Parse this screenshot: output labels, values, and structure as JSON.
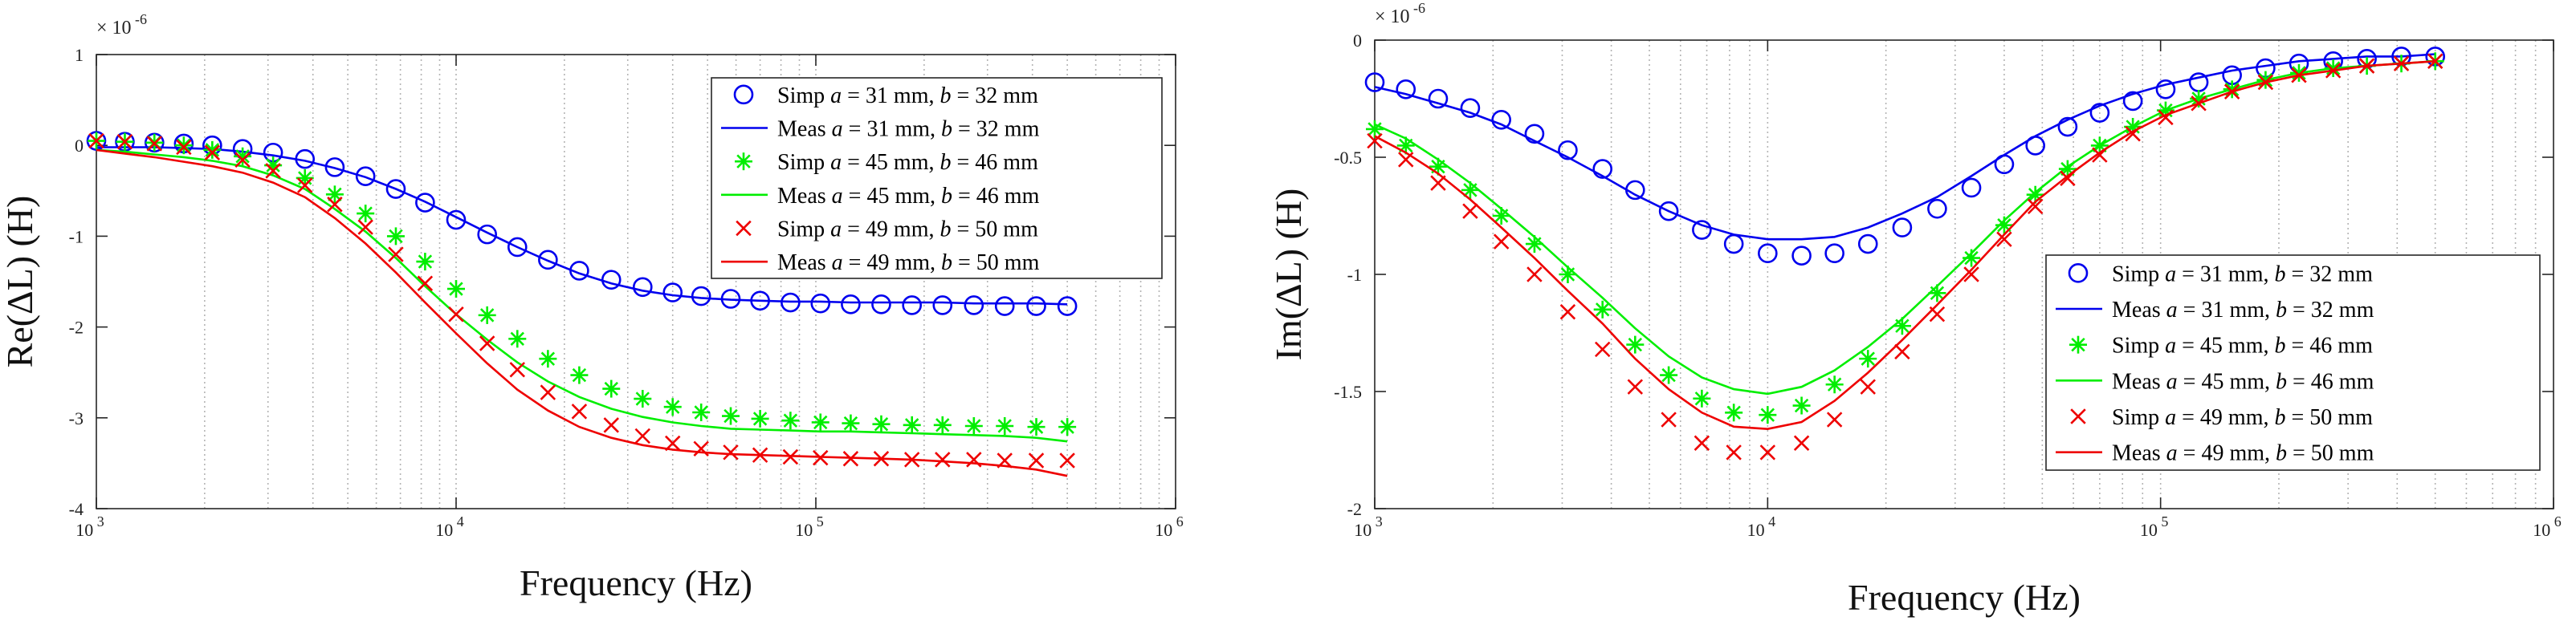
{
  "colors": {
    "blue": "#0000ee",
    "green": "#00ee00",
    "red": "#ee0000",
    "axis": "#262626",
    "grid": "#b4b4b4"
  },
  "chart_data": [
    {
      "type": "line",
      "xscale": "log",
      "xlim": [
        1000,
        1000000
      ],
      "ylim": [
        -4,
        1
      ],
      "yticks": [
        -4,
        -3,
        -2,
        -1,
        0,
        1
      ],
      "xticks": [
        {
          "base": "10",
          "exp": "3"
        },
        {
          "base": "10",
          "exp": "4"
        },
        {
          "base": "10",
          "exp": "5"
        },
        {
          "base": "10",
          "exp": "6"
        }
      ],
      "yscale_label": {
        "base": "× 10",
        "exp": "-6"
      },
      "xlabel": "Frequency (Hz)",
      "ylabel": "Re(ΔL) (H)",
      "legend_position": "top-right",
      "freq": [
        1000,
        1200,
        1450,
        1750,
        2100,
        2550,
        3100,
        3800,
        4600,
        5600,
        6800,
        8200,
        10000,
        12200,
        14800,
        18000,
        22000,
        27000,
        33000,
        40000,
        48000,
        58000,
        70000,
        85000,
        103000,
        125000,
        152000,
        185000,
        225000,
        275000,
        335000,
        410000,
        500000
      ],
      "series": [
        {
          "name": "Simp",
          "a": "31",
          "b": "32",
          "color": "blue",
          "style": "circle",
          "values": [
            0.05,
            0.04,
            0.03,
            0.02,
            0.0,
            -0.04,
            -0.08,
            -0.15,
            -0.24,
            -0.34,
            -0.48,
            -0.63,
            -0.82,
            -0.98,
            -1.12,
            -1.26,
            -1.38,
            -1.48,
            -1.56,
            -1.62,
            -1.66,
            -1.69,
            -1.71,
            -1.73,
            -1.74,
            -1.75,
            -1.75,
            -1.76,
            -1.76,
            -1.76,
            -1.77,
            -1.77,
            -1.77
          ]
        },
        {
          "name": "Meas",
          "a": "31",
          "b": "32",
          "color": "blue",
          "style": "line",
          "values": [
            -0.02,
            -0.02,
            -0.02,
            -0.03,
            -0.04,
            -0.07,
            -0.11,
            -0.17,
            -0.25,
            -0.35,
            -0.48,
            -0.62,
            -0.79,
            -0.96,
            -1.12,
            -1.27,
            -1.41,
            -1.52,
            -1.6,
            -1.65,
            -1.68,
            -1.7,
            -1.71,
            -1.72,
            -1.72,
            -1.73,
            -1.73,
            -1.73,
            -1.73,
            -1.74,
            -1.74,
            -1.74,
            -1.75
          ]
        },
        {
          "name": "Simp",
          "a": "45",
          "b": "46",
          "color": "green",
          "style": "asterisk",
          "values": [
            0.05,
            0.04,
            0.03,
            0.0,
            -0.05,
            -0.12,
            -0.22,
            -0.36,
            -0.54,
            -0.75,
            -1.0,
            -1.28,
            -1.58,
            -1.87,
            -2.13,
            -2.35,
            -2.53,
            -2.68,
            -2.79,
            -2.88,
            -2.94,
            -2.98,
            -3.01,
            -3.03,
            -3.05,
            -3.06,
            -3.07,
            -3.08,
            -3.08,
            -3.09,
            -3.09,
            -3.1,
            -3.1
          ]
        },
        {
          "name": "Meas",
          "a": "45",
          "b": "46",
          "color": "green",
          "style": "line",
          "values": [
            -0.05,
            -0.07,
            -0.1,
            -0.13,
            -0.17,
            -0.23,
            -0.33,
            -0.48,
            -0.7,
            -0.95,
            -1.24,
            -1.55,
            -1.86,
            -2.14,
            -2.39,
            -2.6,
            -2.77,
            -2.9,
            -2.99,
            -3.05,
            -3.09,
            -3.12,
            -3.13,
            -3.14,
            -3.15,
            -3.15,
            -3.16,
            -3.17,
            -3.18,
            -3.19,
            -3.2,
            -3.22,
            -3.26
          ]
        },
        {
          "name": "Simp",
          "a": "49",
          "b": "50",
          "color": "red",
          "style": "cross",
          "values": [
            0.05,
            0.04,
            0.02,
            -0.02,
            -0.08,
            -0.16,
            -0.28,
            -0.44,
            -0.65,
            -0.9,
            -1.2,
            -1.52,
            -1.86,
            -2.18,
            -2.47,
            -2.72,
            -2.93,
            -3.08,
            -3.2,
            -3.28,
            -3.34,
            -3.38,
            -3.41,
            -3.43,
            -3.44,
            -3.45,
            -3.45,
            -3.46,
            -3.46,
            -3.46,
            -3.47,
            -3.47,
            -3.47
          ]
        },
        {
          "name": "Meas",
          "a": "49",
          "b": "50",
          "color": "red",
          "style": "line",
          "values": [
            -0.05,
            -0.09,
            -0.13,
            -0.18,
            -0.23,
            -0.3,
            -0.41,
            -0.57,
            -0.8,
            -1.08,
            -1.4,
            -1.73,
            -2.07,
            -2.4,
            -2.69,
            -2.92,
            -3.1,
            -3.22,
            -3.3,
            -3.35,
            -3.38,
            -3.4,
            -3.41,
            -3.42,
            -3.43,
            -3.44,
            -3.45,
            -3.46,
            -3.48,
            -3.5,
            -3.53,
            -3.57,
            -3.64
          ]
        }
      ]
    },
    {
      "type": "line",
      "xscale": "log",
      "xlim": [
        1000,
        1000000
      ],
      "ylim": [
        -2,
        0
      ],
      "yticks": [
        -2,
        -1.5,
        -1,
        -0.5,
        0
      ],
      "xticks": [
        {
          "base": "10",
          "exp": "3"
        },
        {
          "base": "10",
          "exp": "4"
        },
        {
          "base": "10",
          "exp": "5"
        },
        {
          "base": "10",
          "exp": "6"
        }
      ],
      "yscale_label": {
        "base": "× 10",
        "exp": "-6"
      },
      "xlabel": "Frequency (Hz)",
      "ylabel": "Im(ΔL) (H)",
      "legend_position": "bottom-right",
      "freq": [
        1000,
        1200,
        1450,
        1750,
        2100,
        2550,
        3100,
        3800,
        4600,
        5600,
        6800,
        8200,
        10000,
        12200,
        14800,
        18000,
        22000,
        27000,
        33000,
        40000,
        48000,
        58000,
        70000,
        85000,
        103000,
        125000,
        152000,
        185000,
        225000,
        275000,
        335000,
        410000,
        500000
      ],
      "series": [
        {
          "name": "Simp",
          "a": "31",
          "b": "32",
          "color": "blue",
          "style": "circle",
          "values": [
            -0.18,
            -0.21,
            -0.25,
            -0.29,
            -0.34,
            -0.4,
            -0.47,
            -0.55,
            -0.64,
            -0.73,
            -0.81,
            -0.87,
            -0.91,
            -0.92,
            -0.91,
            -0.87,
            -0.8,
            -0.72,
            -0.63,
            -0.53,
            -0.45,
            -0.37,
            -0.31,
            -0.26,
            -0.21,
            -0.18,
            -0.15,
            -0.12,
            -0.1,
            -0.09,
            -0.08,
            -0.07,
            -0.07
          ]
        },
        {
          "name": "Meas",
          "a": "31",
          "b": "32",
          "color": "blue",
          "style": "line",
          "values": [
            -0.2,
            -0.23,
            -0.27,
            -0.31,
            -0.36,
            -0.43,
            -0.5,
            -0.58,
            -0.66,
            -0.73,
            -0.79,
            -0.83,
            -0.85,
            -0.85,
            -0.84,
            -0.8,
            -0.74,
            -0.67,
            -0.58,
            -0.49,
            -0.41,
            -0.34,
            -0.28,
            -0.23,
            -0.19,
            -0.16,
            -0.13,
            -0.11,
            -0.09,
            -0.08,
            -0.07,
            -0.07,
            -0.06
          ]
        },
        {
          "name": "Simp",
          "a": "45",
          "b": "46",
          "color": "green",
          "style": "asterisk",
          "values": [
            -0.38,
            -0.45,
            -0.54,
            -0.64,
            -0.75,
            -0.87,
            -1.0,
            -1.15,
            -1.3,
            -1.43,
            -1.53,
            -1.59,
            -1.6,
            -1.56,
            -1.47,
            -1.36,
            -1.22,
            -1.08,
            -0.93,
            -0.79,
            -0.66,
            -0.55,
            -0.45,
            -0.37,
            -0.3,
            -0.25,
            -0.21,
            -0.17,
            -0.14,
            -0.12,
            -0.11,
            -0.1,
            -0.09
          ]
        },
        {
          "name": "Meas",
          "a": "45",
          "b": "46",
          "color": "green",
          "style": "line",
          "values": [
            -0.36,
            -0.42,
            -0.51,
            -0.61,
            -0.72,
            -0.84,
            -0.97,
            -1.1,
            -1.23,
            -1.35,
            -1.44,
            -1.49,
            -1.51,
            -1.48,
            -1.41,
            -1.31,
            -1.19,
            -1.05,
            -0.91,
            -0.77,
            -0.65,
            -0.54,
            -0.45,
            -0.37,
            -0.3,
            -0.25,
            -0.21,
            -0.17,
            -0.14,
            -0.12,
            -0.11,
            -0.1,
            -0.09
          ]
        },
        {
          "name": "Simp",
          "a": "49",
          "b": "50",
          "color": "red",
          "style": "cross",
          "values": [
            -0.43,
            -0.51,
            -0.61,
            -0.73,
            -0.86,
            -1.0,
            -1.16,
            -1.32,
            -1.48,
            -1.62,
            -1.72,
            -1.76,
            -1.76,
            -1.72,
            -1.62,
            -1.48,
            -1.33,
            -1.17,
            -1.0,
            -0.85,
            -0.71,
            -0.59,
            -0.49,
            -0.4,
            -0.33,
            -0.27,
            -0.22,
            -0.18,
            -0.15,
            -0.13,
            -0.11,
            -0.1,
            -0.09
          ]
        },
        {
          "name": "Meas",
          "a": "49",
          "b": "50",
          "color": "red",
          "style": "line",
          "values": [
            -0.41,
            -0.48,
            -0.57,
            -0.68,
            -0.8,
            -0.93,
            -1.07,
            -1.21,
            -1.36,
            -1.49,
            -1.59,
            -1.65,
            -1.66,
            -1.63,
            -1.54,
            -1.42,
            -1.28,
            -1.13,
            -0.98,
            -0.83,
            -0.69,
            -0.58,
            -0.48,
            -0.39,
            -0.32,
            -0.27,
            -0.22,
            -0.18,
            -0.15,
            -0.13,
            -0.11,
            -0.1,
            -0.09
          ]
        }
      ]
    }
  ]
}
